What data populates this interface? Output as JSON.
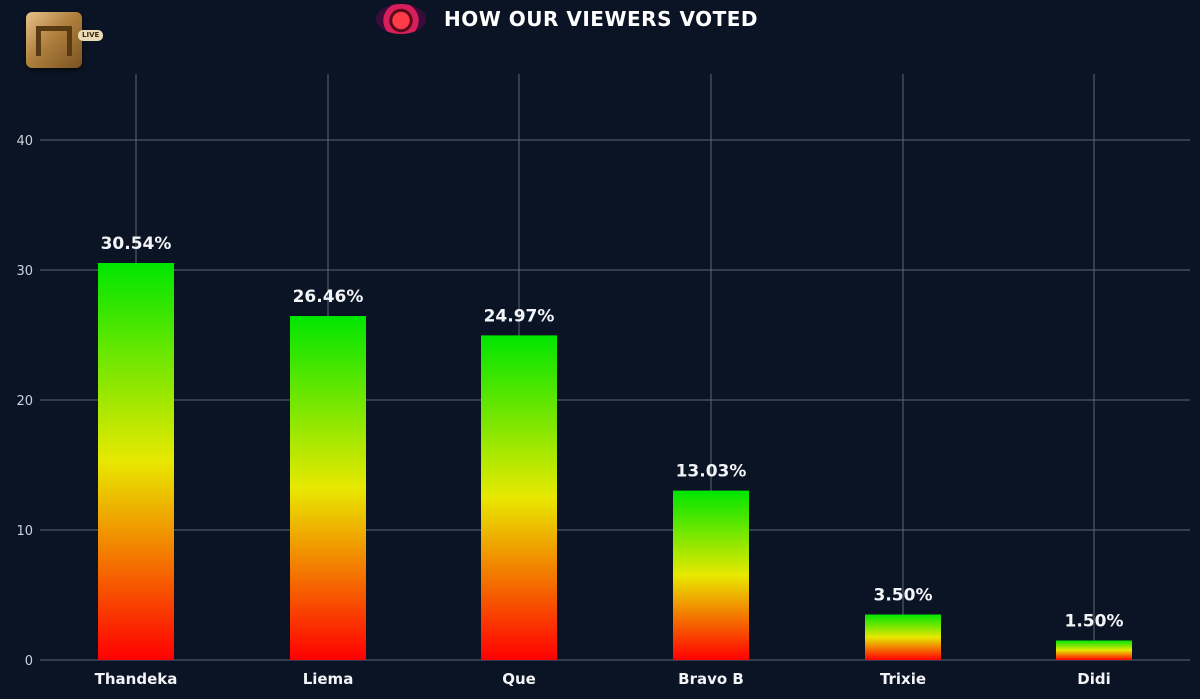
{
  "header": {
    "title": "HOW OUR VIEWERS VOTED",
    "logo_badge": "LIVE"
  },
  "icons": {
    "logo": "channel-logo-icon",
    "emblem": "show-emblem-icon"
  },
  "colors": {
    "background": "#0b1424",
    "bar_bottom": "#ff0000",
    "bar_middle": "#e8e800",
    "bar_top": "#00e600",
    "text": "#ffffff"
  },
  "chart_data": {
    "type": "bar",
    "title": "HOW OUR VIEWERS VOTED",
    "xlabel": "",
    "ylabel": "",
    "categories": [
      "Thandeka",
      "Liema",
      "Que",
      "Bravo B",
      "Trixie",
      "Didi"
    ],
    "values": [
      30.54,
      26.46,
      24.97,
      13.03,
      3.5,
      1.5
    ],
    "data_labels": [
      "30.54%",
      "26.46%",
      "24.97%",
      "13.03%",
      "3.50%",
      "1.50%"
    ],
    "ylim": [
      0,
      40
    ],
    "yticks": [
      0,
      10,
      20,
      30,
      40
    ],
    "grid": true,
    "legend": "none"
  }
}
